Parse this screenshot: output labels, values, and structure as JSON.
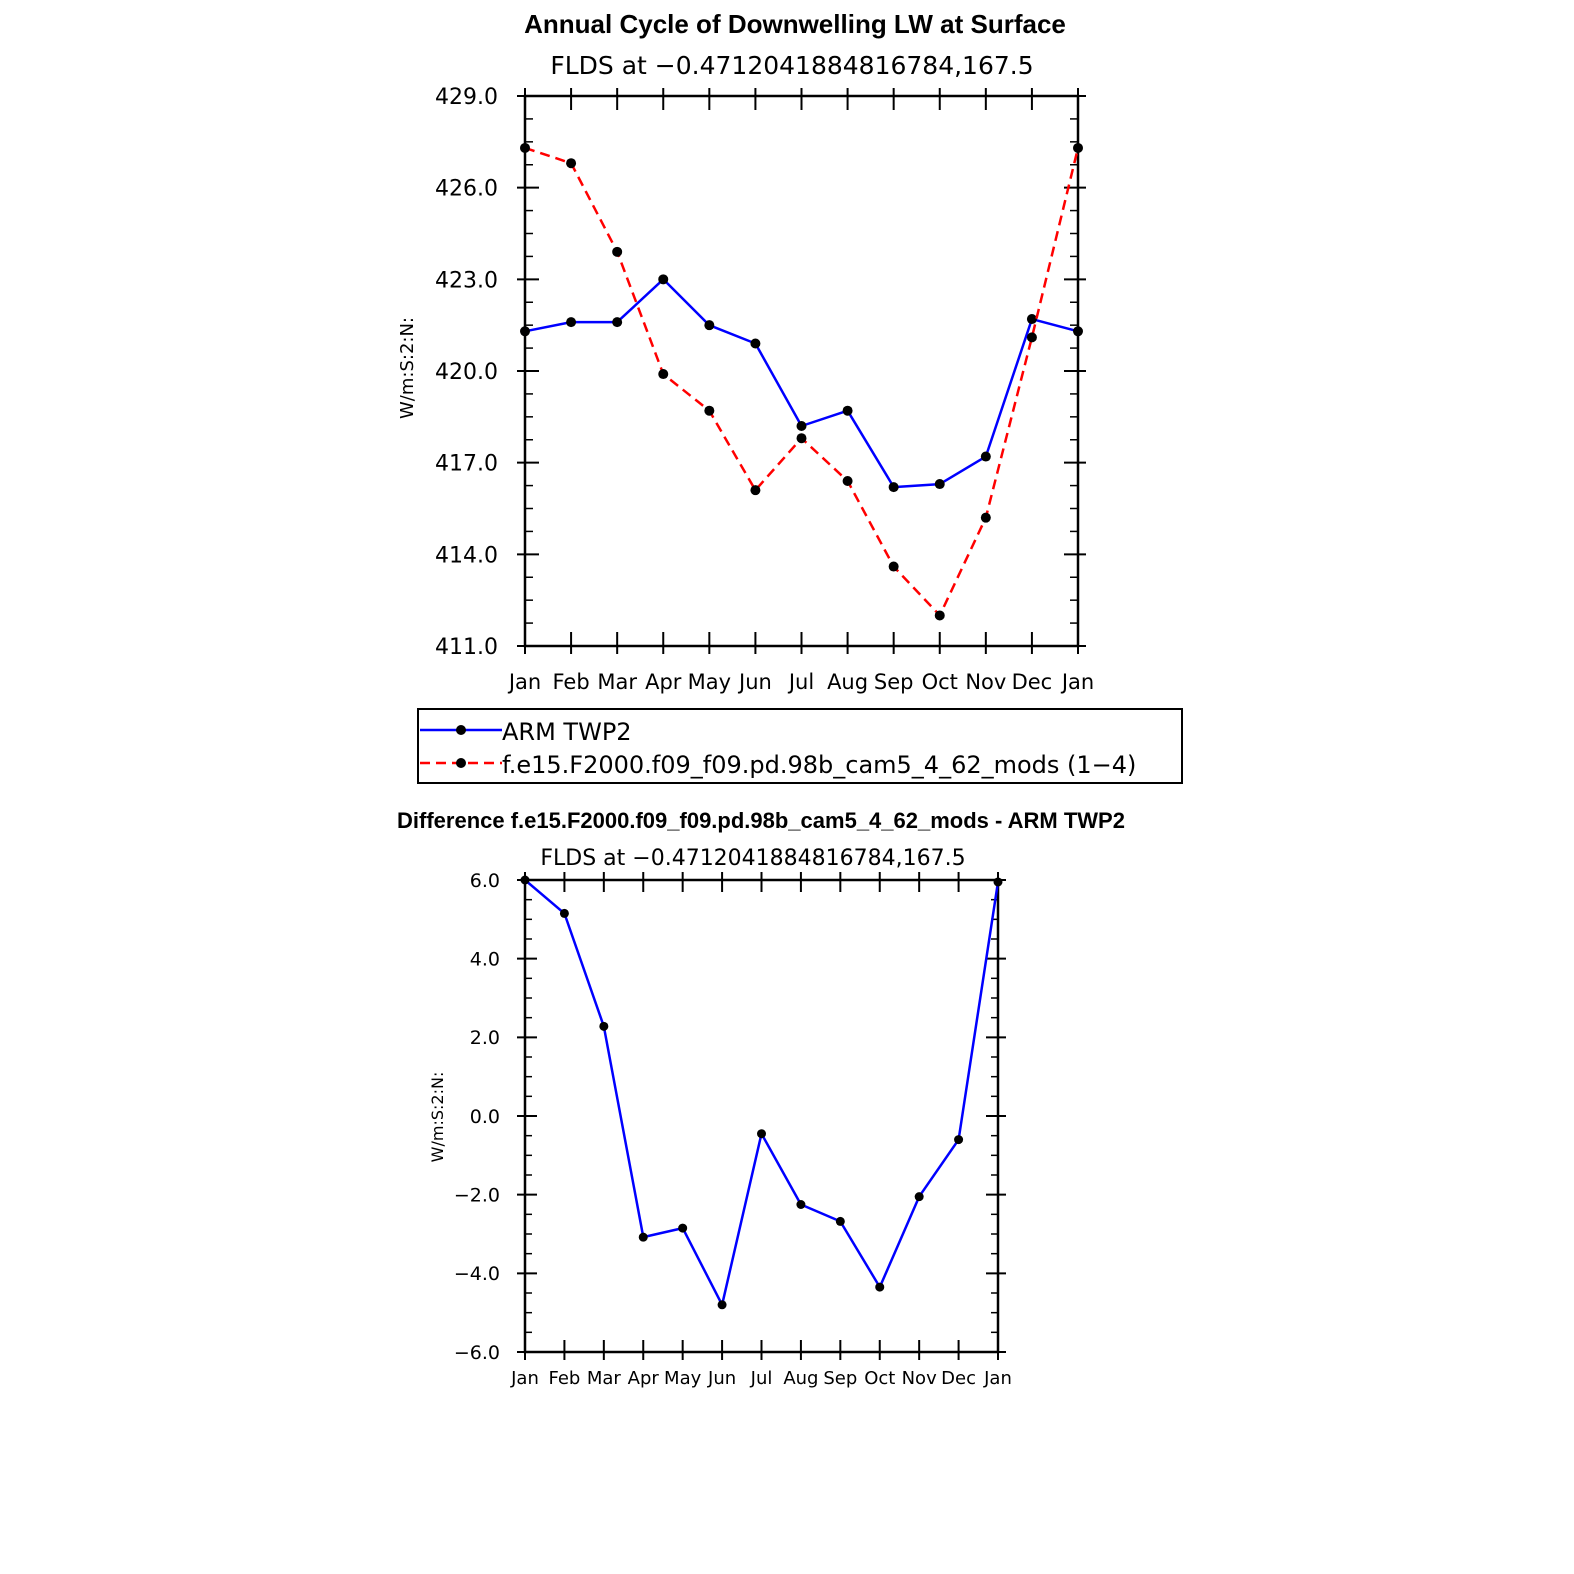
{
  "chart_data": [
    {
      "type": "line",
      "title": "Annual Cycle of Downwelling LW at Surface",
      "subtitle": "FLDS at −0.4712041884816784,167.5",
      "ylabel": "W/m:S:2:N:",
      "xlabel": "",
      "categories": [
        "Jan",
        "Feb",
        "Mar",
        "Apr",
        "May",
        "Jun",
        "Jul",
        "Aug",
        "Sep",
        "Oct",
        "Nov",
        "Dec",
        "Jan"
      ],
      "ylim": [
        411.0,
        429.0
      ],
      "yticks": [
        "411.0",
        "414.0",
        "417.0",
        "420.0",
        "423.0",
        "426.0",
        "429.0"
      ],
      "series": [
        {
          "name": "ARM TWP2",
          "color": "#0000ff",
          "dash": "solid",
          "values": [
            421.3,
            421.6,
            421.6,
            423.0,
            421.5,
            420.9,
            418.2,
            418.7,
            416.2,
            416.3,
            417.2,
            421.7,
            421.3
          ]
        },
        {
          "name": "f.e15.F2000.f09_f09.pd.98b_cam5_4_62_mods (1−4)",
          "color": "#ff0000",
          "dash": "dashed",
          "values": [
            427.3,
            426.8,
            423.9,
            419.9,
            418.7,
            416.1,
            417.8,
            416.4,
            413.6,
            412.0,
            415.2,
            421.1,
            427.3
          ]
        }
      ]
    },
    {
      "type": "line",
      "title": "Difference f.e15.F2000.f09_f09.pd.98b_cam5_4_62_mods - ARM TWP2",
      "subtitle": "FLDS at −0.4712041884816784,167.5",
      "ylabel": "W/m:S:2:N:",
      "xlabel": "",
      "categories": [
        "Jan",
        "Feb",
        "Mar",
        "Apr",
        "May",
        "Jun",
        "Jul",
        "Aug",
        "Sep",
        "Oct",
        "Nov",
        "Dec",
        "Jan"
      ],
      "ylim": [
        -6.0,
        6.0
      ],
      "yticks": [
        "−6.0",
        "−4.0",
        "−2.0",
        "0.0",
        "2.0",
        "4.0",
        "6.0"
      ],
      "series": [
        {
          "name": "Difference",
          "color": "#0000ff",
          "dash": "solid",
          "values": [
            6.0,
            5.15,
            2.28,
            -3.08,
            -2.85,
            -4.8,
            -0.45,
            -2.25,
            -2.68,
            -4.35,
            -2.05,
            -0.6,
            5.95
          ]
        }
      ]
    }
  ]
}
